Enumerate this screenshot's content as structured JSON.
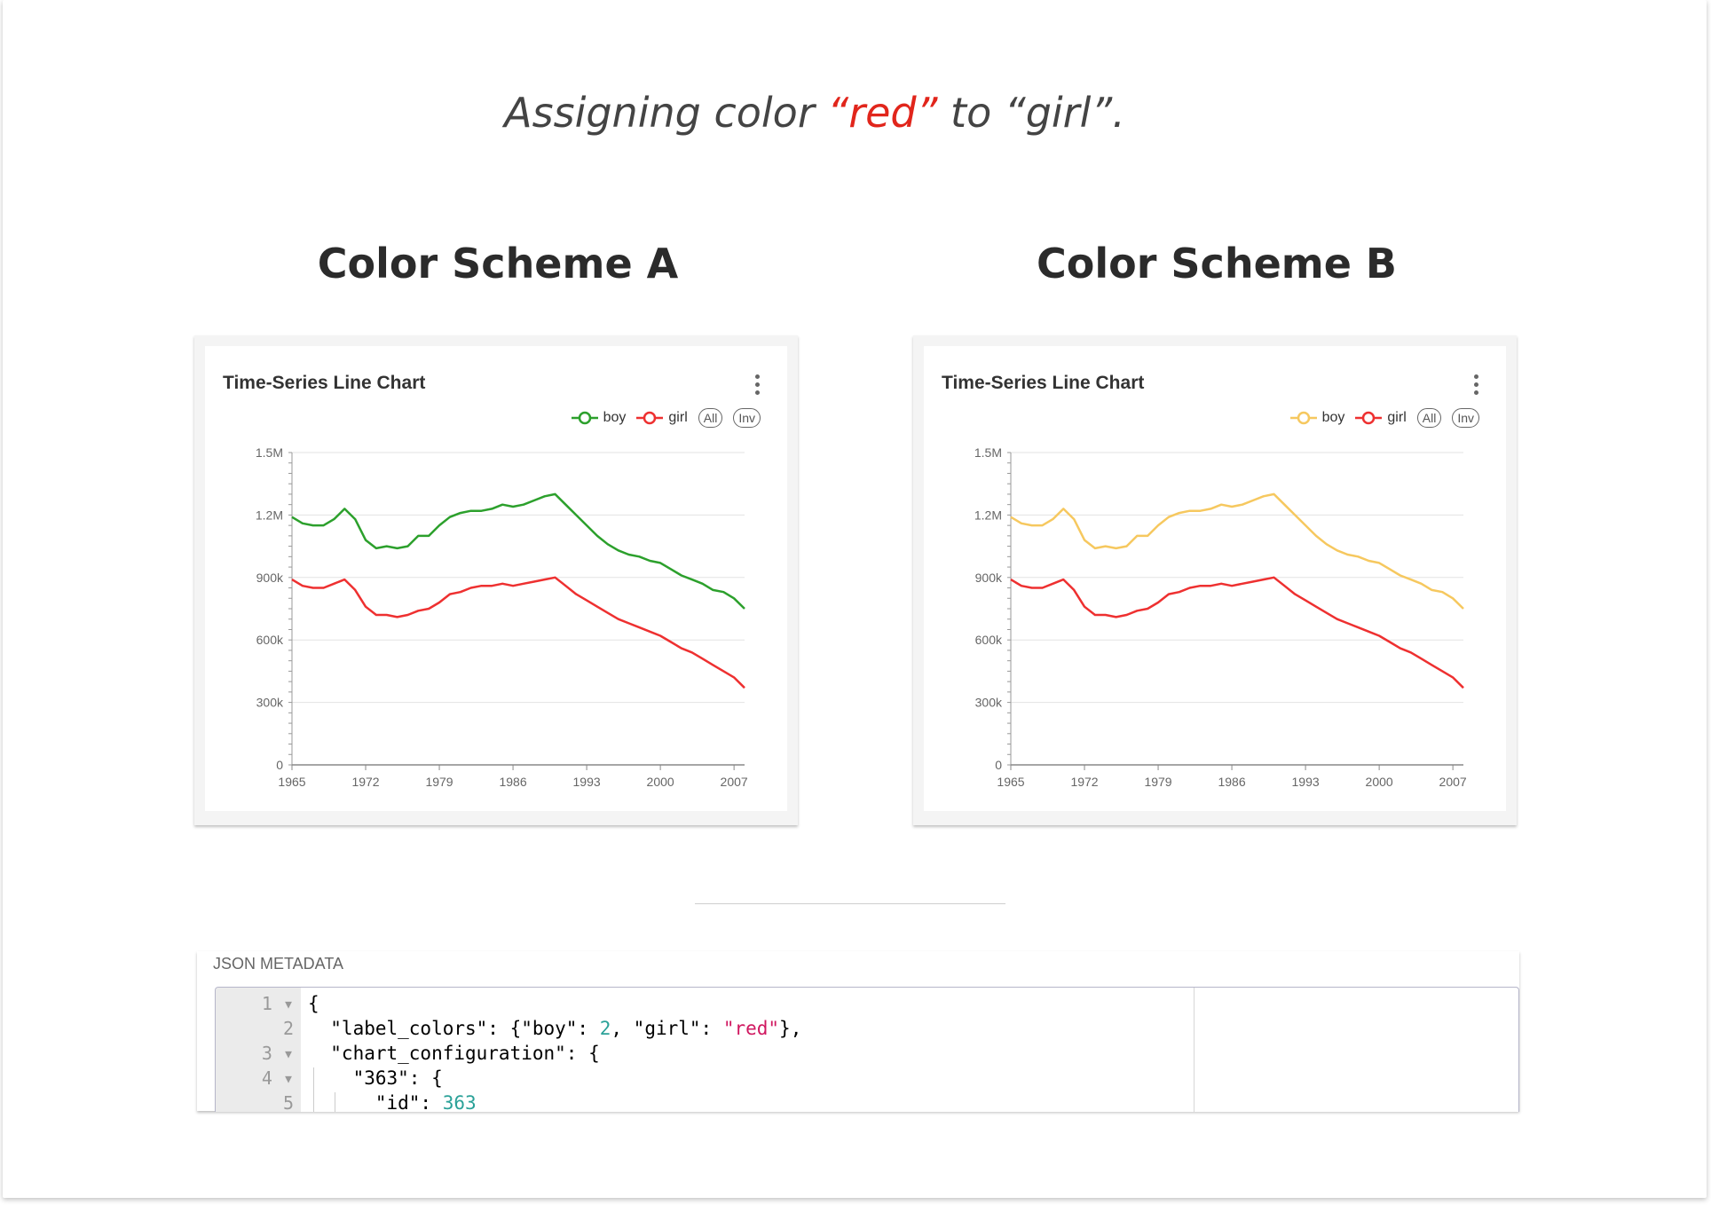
{
  "caption": {
    "prefix": "Assigning color ",
    "highlight": "“red”",
    "suffix": " to “girl”."
  },
  "schemes": [
    {
      "title": "Color Scheme A",
      "chart_title": "Time-Series Line Chart",
      "legend": [
        {
          "label": "boy",
          "color": "#2ca02c"
        },
        {
          "label": "girl",
          "color": "#ee3030"
        }
      ],
      "controls": [
        "All",
        "Inv"
      ]
    },
    {
      "title": "Color Scheme B",
      "chart_title": "Time-Series Line Chart",
      "legend": [
        {
          "label": "boy",
          "color": "#f6c85f"
        },
        {
          "label": "girl",
          "color": "#ee3030"
        }
      ],
      "controls": [
        "All",
        "Inv"
      ]
    }
  ],
  "chart_data": {
    "type": "line",
    "x": [
      1965,
      1966,
      1967,
      1968,
      1969,
      1970,
      1971,
      1972,
      1973,
      1974,
      1975,
      1976,
      1977,
      1978,
      1979,
      1980,
      1981,
      1982,
      1983,
      1984,
      1985,
      1986,
      1987,
      1988,
      1989,
      1990,
      1991,
      1992,
      1993,
      1994,
      1995,
      1996,
      1997,
      1998,
      1999,
      2000,
      2001,
      2002,
      2003,
      2004,
      2005,
      2006,
      2007,
      2008
    ],
    "series": [
      {
        "name": "boy",
        "values": [
          1190000,
          1160000,
          1150000,
          1150000,
          1180000,
          1230000,
          1180000,
          1080000,
          1040000,
          1050000,
          1040000,
          1050000,
          1100000,
          1100000,
          1150000,
          1190000,
          1210000,
          1220000,
          1220000,
          1230000,
          1250000,
          1240000,
          1250000,
          1270000,
          1290000,
          1300000,
          1250000,
          1200000,
          1150000,
          1100000,
          1060000,
          1030000,
          1010000,
          1000000,
          980000,
          970000,
          940000,
          910000,
          890000,
          870000,
          840000,
          830000,
          800000,
          750000
        ]
      },
      {
        "name": "girl",
        "values": [
          890000,
          860000,
          850000,
          850000,
          870000,
          890000,
          840000,
          760000,
          720000,
          720000,
          710000,
          720000,
          740000,
          750000,
          780000,
          820000,
          830000,
          850000,
          860000,
          860000,
          870000,
          860000,
          870000,
          880000,
          890000,
          900000,
          860000,
          820000,
          790000,
          760000,
          730000,
          700000,
          680000,
          660000,
          640000,
          620000,
          590000,
          560000,
          540000,
          510000,
          480000,
          450000,
          420000,
          370000
        ]
      }
    ],
    "x_ticks": [
      "1965",
      "1972",
      "1979",
      "1986",
      "1993",
      "2000",
      "2007"
    ],
    "y_ticks": [
      "0",
      "300k",
      "600k",
      "900k",
      "1.2M",
      "1.5M"
    ],
    "ylim": [
      0,
      1500000
    ],
    "xlim": [
      1965,
      2008
    ],
    "grid": true,
    "legend_position": "top-right"
  },
  "json_metadata": {
    "label": "JSON METADATA",
    "line_numbers": [
      "1",
      "2",
      "3",
      "4",
      "5"
    ],
    "lines": [
      [
        {
          "t": "{",
          "c": "p"
        }
      ],
      [
        {
          "t": "  \"label_colors\": {\"boy\": ",
          "c": "p"
        },
        {
          "t": "2",
          "c": "num"
        },
        {
          "t": ", \"girl\": ",
          "c": "p"
        },
        {
          "t": "\"red\"",
          "c": "str"
        },
        {
          "t": "},",
          "c": "p"
        }
      ],
      [
        {
          "t": "  \"chart_configuration\": {",
          "c": "p"
        }
      ],
      [
        {
          "t": "    \"363\": {",
          "c": "p"
        }
      ],
      [
        {
          "t": "      \"id\": ",
          "c": "p"
        },
        {
          "t": "363",
          "c": "num"
        }
      ]
    ]
  }
}
